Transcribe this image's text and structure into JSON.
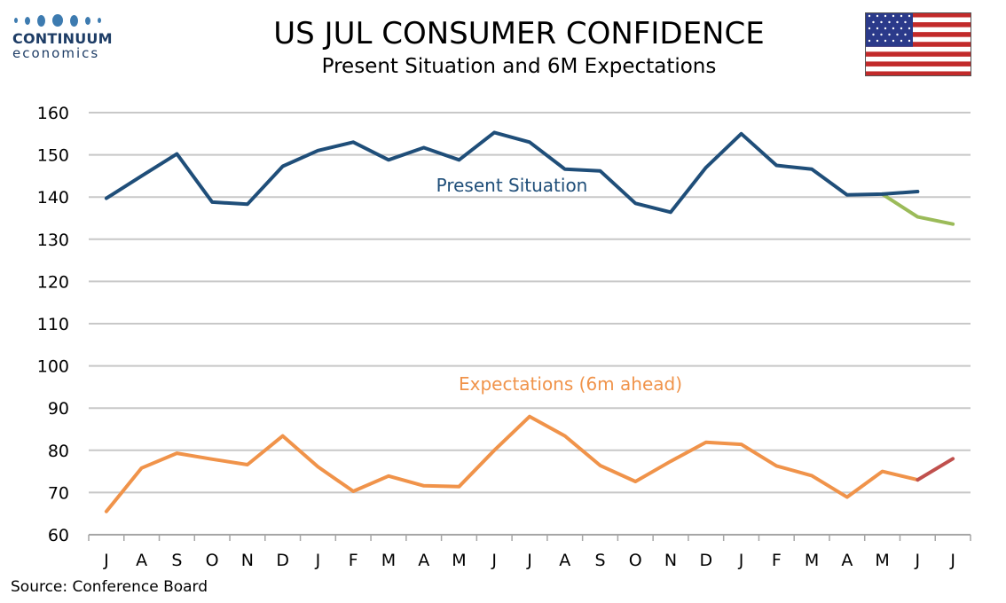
{
  "header": {
    "logo_name": "CONTINUUM",
    "logo_sub": "economics",
    "title": "US JUL CONSUMER CONFIDENCE",
    "subtitle": "Present Situation and 6M Expectations"
  },
  "footer": {
    "source": "Source: Conference Board"
  },
  "colors": {
    "present": "#1f4e79",
    "present_revised": "#9bbb59",
    "expectations": "#f0934a",
    "expectations_latest": "#c0504d",
    "grid": "#c8c8c8",
    "logo": "#1e3d66"
  },
  "chart_data": {
    "type": "line",
    "categories": [
      "J",
      "A",
      "S",
      "O",
      "N",
      "D",
      "J",
      "F",
      "M",
      "A",
      "M",
      "J",
      "J",
      "A",
      "S",
      "O",
      "N",
      "D",
      "J",
      "F",
      "M",
      "A",
      "M",
      "J",
      "J"
    ],
    "ylim": [
      60,
      160
    ],
    "yticks": [
      60,
      70,
      80,
      90,
      100,
      110,
      120,
      130,
      140,
      150,
      160
    ],
    "grid": true,
    "series": [
      {
        "name": "Present Situation",
        "values": [
          139.7,
          145.0,
          150.2,
          138.8,
          138.3,
          147.3,
          151.0,
          153.0,
          148.8,
          151.7,
          148.8,
          155.3,
          153.0,
          146.6,
          146.2,
          138.5,
          136.4,
          147.0,
          155.0,
          147.5,
          146.6,
          140.5,
          140.7,
          141.3,
          null
        ]
      },
      {
        "name": "",
        "values": [
          null,
          null,
          null,
          null,
          null,
          null,
          null,
          null,
          null,
          null,
          null,
          null,
          null,
          null,
          null,
          null,
          null,
          null,
          null,
          null,
          null,
          null,
          140.7,
          135.3,
          133.6
        ]
      },
      {
        "name": "Expectations (6m ahead)",
        "values": [
          65.5,
          75.8,
          79.3,
          77.9,
          76.6,
          83.4,
          76.1,
          70.3,
          73.9,
          71.6,
          71.4,
          80.0,
          88.0,
          83.4,
          76.4,
          72.6,
          77.4,
          81.9,
          81.4,
          76.3,
          74.0,
          68.9,
          75.0,
          73.0,
          null
        ]
      },
      {
        "name": "",
        "values": [
          null,
          null,
          null,
          null,
          null,
          null,
          null,
          null,
          null,
          null,
          null,
          null,
          null,
          null,
          null,
          null,
          null,
          null,
          null,
          null,
          null,
          null,
          null,
          73.0,
          78.0
        ]
      }
    ],
    "annotations": [
      "Present Situation",
      "Expectations (6m ahead)"
    ]
  }
}
